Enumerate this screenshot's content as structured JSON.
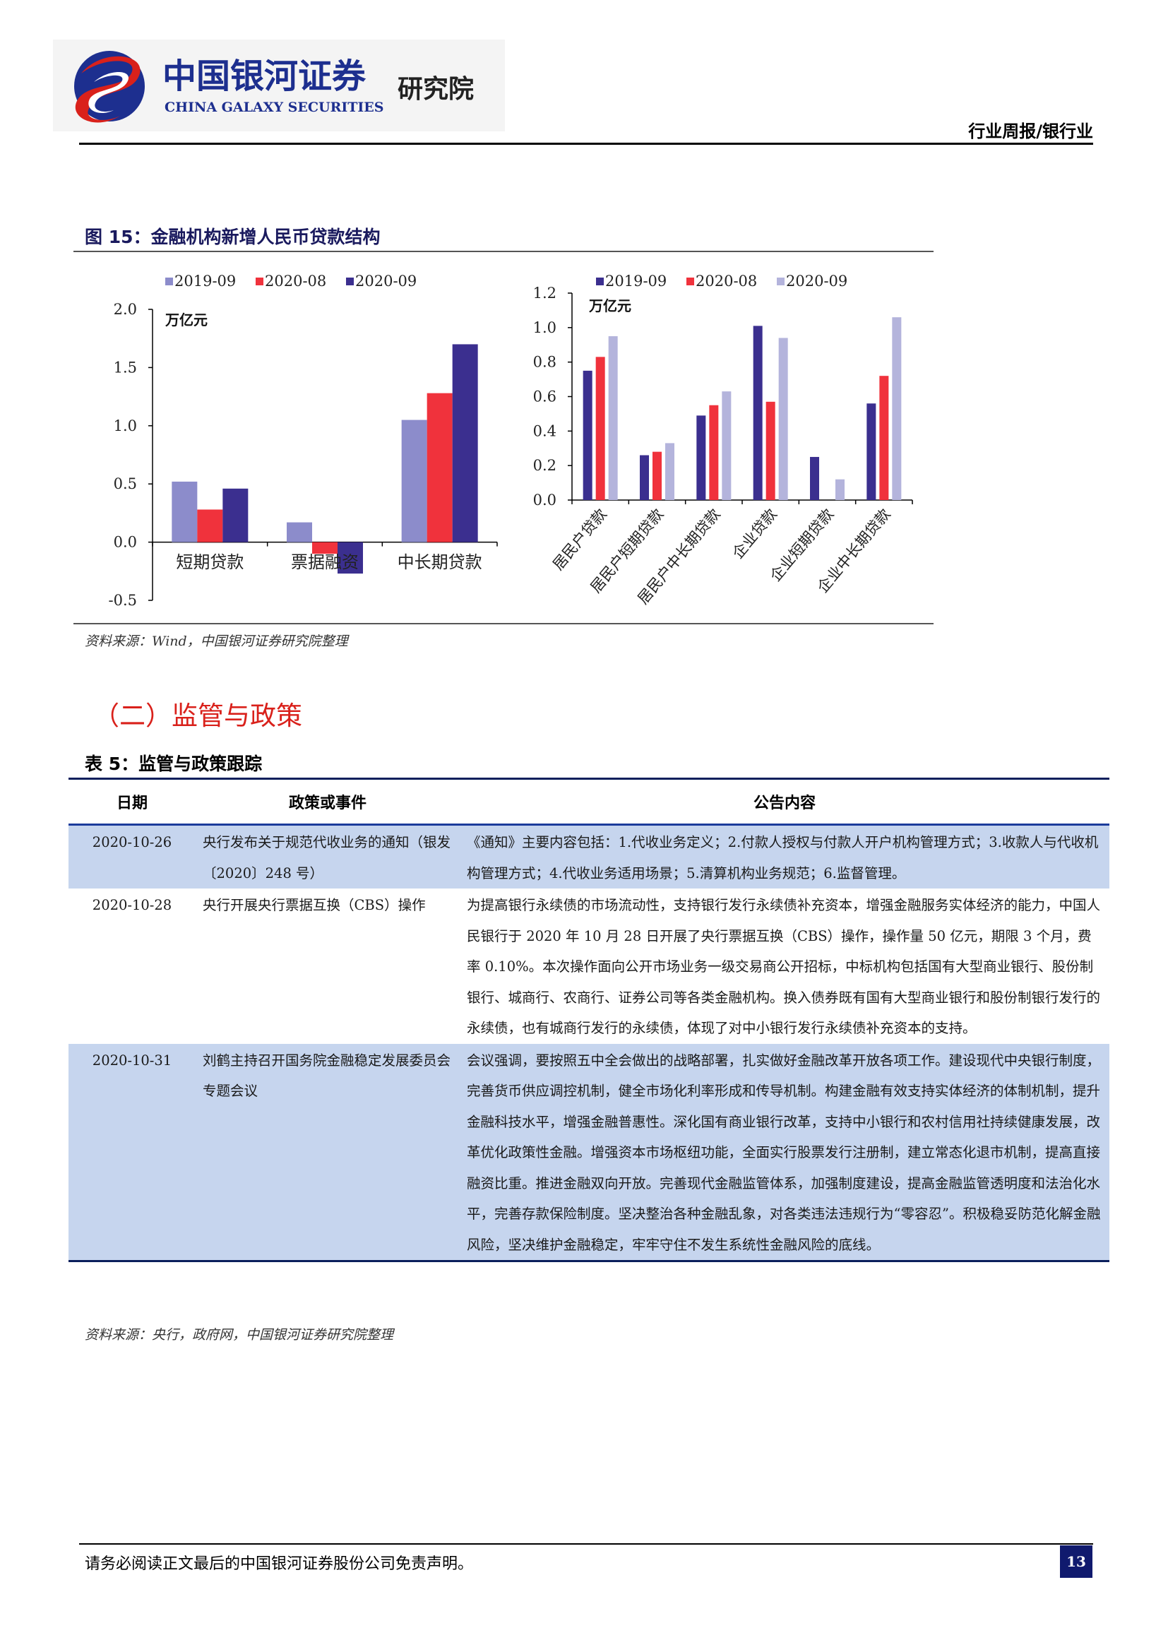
{
  "header": {
    "logo_cn": "中国银河证券",
    "logo_en": "CHINA GALAXY SECURITIES",
    "logo_suffix": "研究院",
    "report_type": "行业周报/银行业"
  },
  "figure": {
    "caption": "图 15：金融机构新增人民币贷款结构",
    "source": "资料来源：Wind，中国银河证券研究院整理"
  },
  "chart_data": [
    {
      "type": "bar",
      "unit_label": "万亿元",
      "categories": [
        "短期贷款",
        "票据融资",
        "中长期贷款"
      ],
      "series": [
        {
          "name": "2019-09",
          "color": "#8c8ccb",
          "values": [
            0.52,
            0.17,
            1.05
          ]
        },
        {
          "name": "2020-08",
          "color": "#f0323c",
          "values": [
            0.28,
            -0.1,
            1.28
          ]
        },
        {
          "name": "2020-09",
          "color": "#3b2f8f",
          "values": [
            0.46,
            -0.27,
            1.7
          ]
        }
      ],
      "ylim": [
        -0.5,
        2.0
      ],
      "yticks": [
        "-0.5",
        "0.0",
        "0.5",
        "1.0",
        "1.5",
        "2.0"
      ],
      "legend": "top"
    },
    {
      "type": "bar",
      "unit_label": "万亿元",
      "categories": [
        "居民户贷款",
        "居民户短期贷款",
        "居民户中长期贷款",
        "企业贷款",
        "企业短期贷款",
        "企业中长期贷款"
      ],
      "series": [
        {
          "name": "2019-09",
          "color": "#3b2f8f",
          "values": [
            0.75,
            0.26,
            0.49,
            1.01,
            0.25,
            0.56
          ]
        },
        {
          "name": "2020-08",
          "color": "#f0323c",
          "values": [
            0.83,
            0.28,
            0.55,
            0.57,
            0.0,
            0.72
          ]
        },
        {
          "name": "2020-09",
          "color": "#b4b4dc",
          "values": [
            0.95,
            0.33,
            0.63,
            0.94,
            0.12,
            1.06
          ]
        }
      ],
      "ylim": [
        0.0,
        1.2
      ],
      "yticks": [
        "0.0",
        "0.2",
        "0.4",
        "0.6",
        "0.8",
        "1.0",
        "1.2"
      ],
      "legend": "top"
    }
  ],
  "section": {
    "title": "（二）监管与政策"
  },
  "table": {
    "caption": "表 5：监管与政策跟踪",
    "headers": [
      "日期",
      "政策或事件",
      "公告内容"
    ],
    "rows": [
      {
        "date": "2020-10-26",
        "event": "央行发布关于规范代收业务的通知（银发〔2020〕248 号）",
        "content": "《通知》主要内容包括：1.代收业务定义；2.付款人授权与付款人开户机构管理方式；3.收款人与代收机构管理方式；4.代收业务适用场景；5.清算机构业务规范；6.监督管理。"
      },
      {
        "date": "2020-10-28",
        "event": "央行开展央行票据互换（CBS）操作",
        "content": "为提高银行永续债的市场流动性，支持银行发行永续债补充资本，增强金融服务实体经济的能力，中国人民银行于 2020 年 10 月 28 日开展了央行票据互换（CBS）操作，操作量 50 亿元，期限 3 个月，费率 0.10%。本次操作面向公开市场业务一级交易商公开招标，中标机构包括国有大型商业银行、股份制银行、城商行、农商行、证券公司等各类金融机构。换入债券既有国有大型商业银行和股份制银行发行的永续债，也有城商行发行的永续债，体现了对中小银行发行永续债补充资本的支持。"
      },
      {
        "date": "2020-10-31",
        "event": "刘鹤主持召开国务院金融稳定发展委员会专题会议",
        "content": "会议强调，要按照五中全会做出的战略部署，扎实做好金融改革开放各项工作。建设现代中央银行制度，完善货币供应调控机制，健全市场化利率形成和传导机制。构建金融有效支持实体经济的体制机制，提升金融科技水平，增强金融普惠性。深化国有商业银行改革，支持中小银行和农村信用社持续健康发展，改革优化政策性金融。增强资本市场枢纽功能，全面实行股票发行注册制，建立常态化退市机制，提高直接融资比重。推进金融双向开放。完善现代金融监管体系，加强制度建设，提高金融监管透明度和法治化水平，完善存款保险制度。坚决整治各种金融乱象，对各类违法违规行为“零容忍”。积极稳妥防范化解金融风险，坚决维护金融稳定，牢牢守住不发生系统性金融风险的底线。"
      }
    ],
    "source": "资料来源：央行，政府网，中国银河证券研究院整理"
  },
  "footer": {
    "disclaimer": "请务必阅读正文最后的中国银河证券股份公司免责声明。",
    "page_number": "13"
  }
}
